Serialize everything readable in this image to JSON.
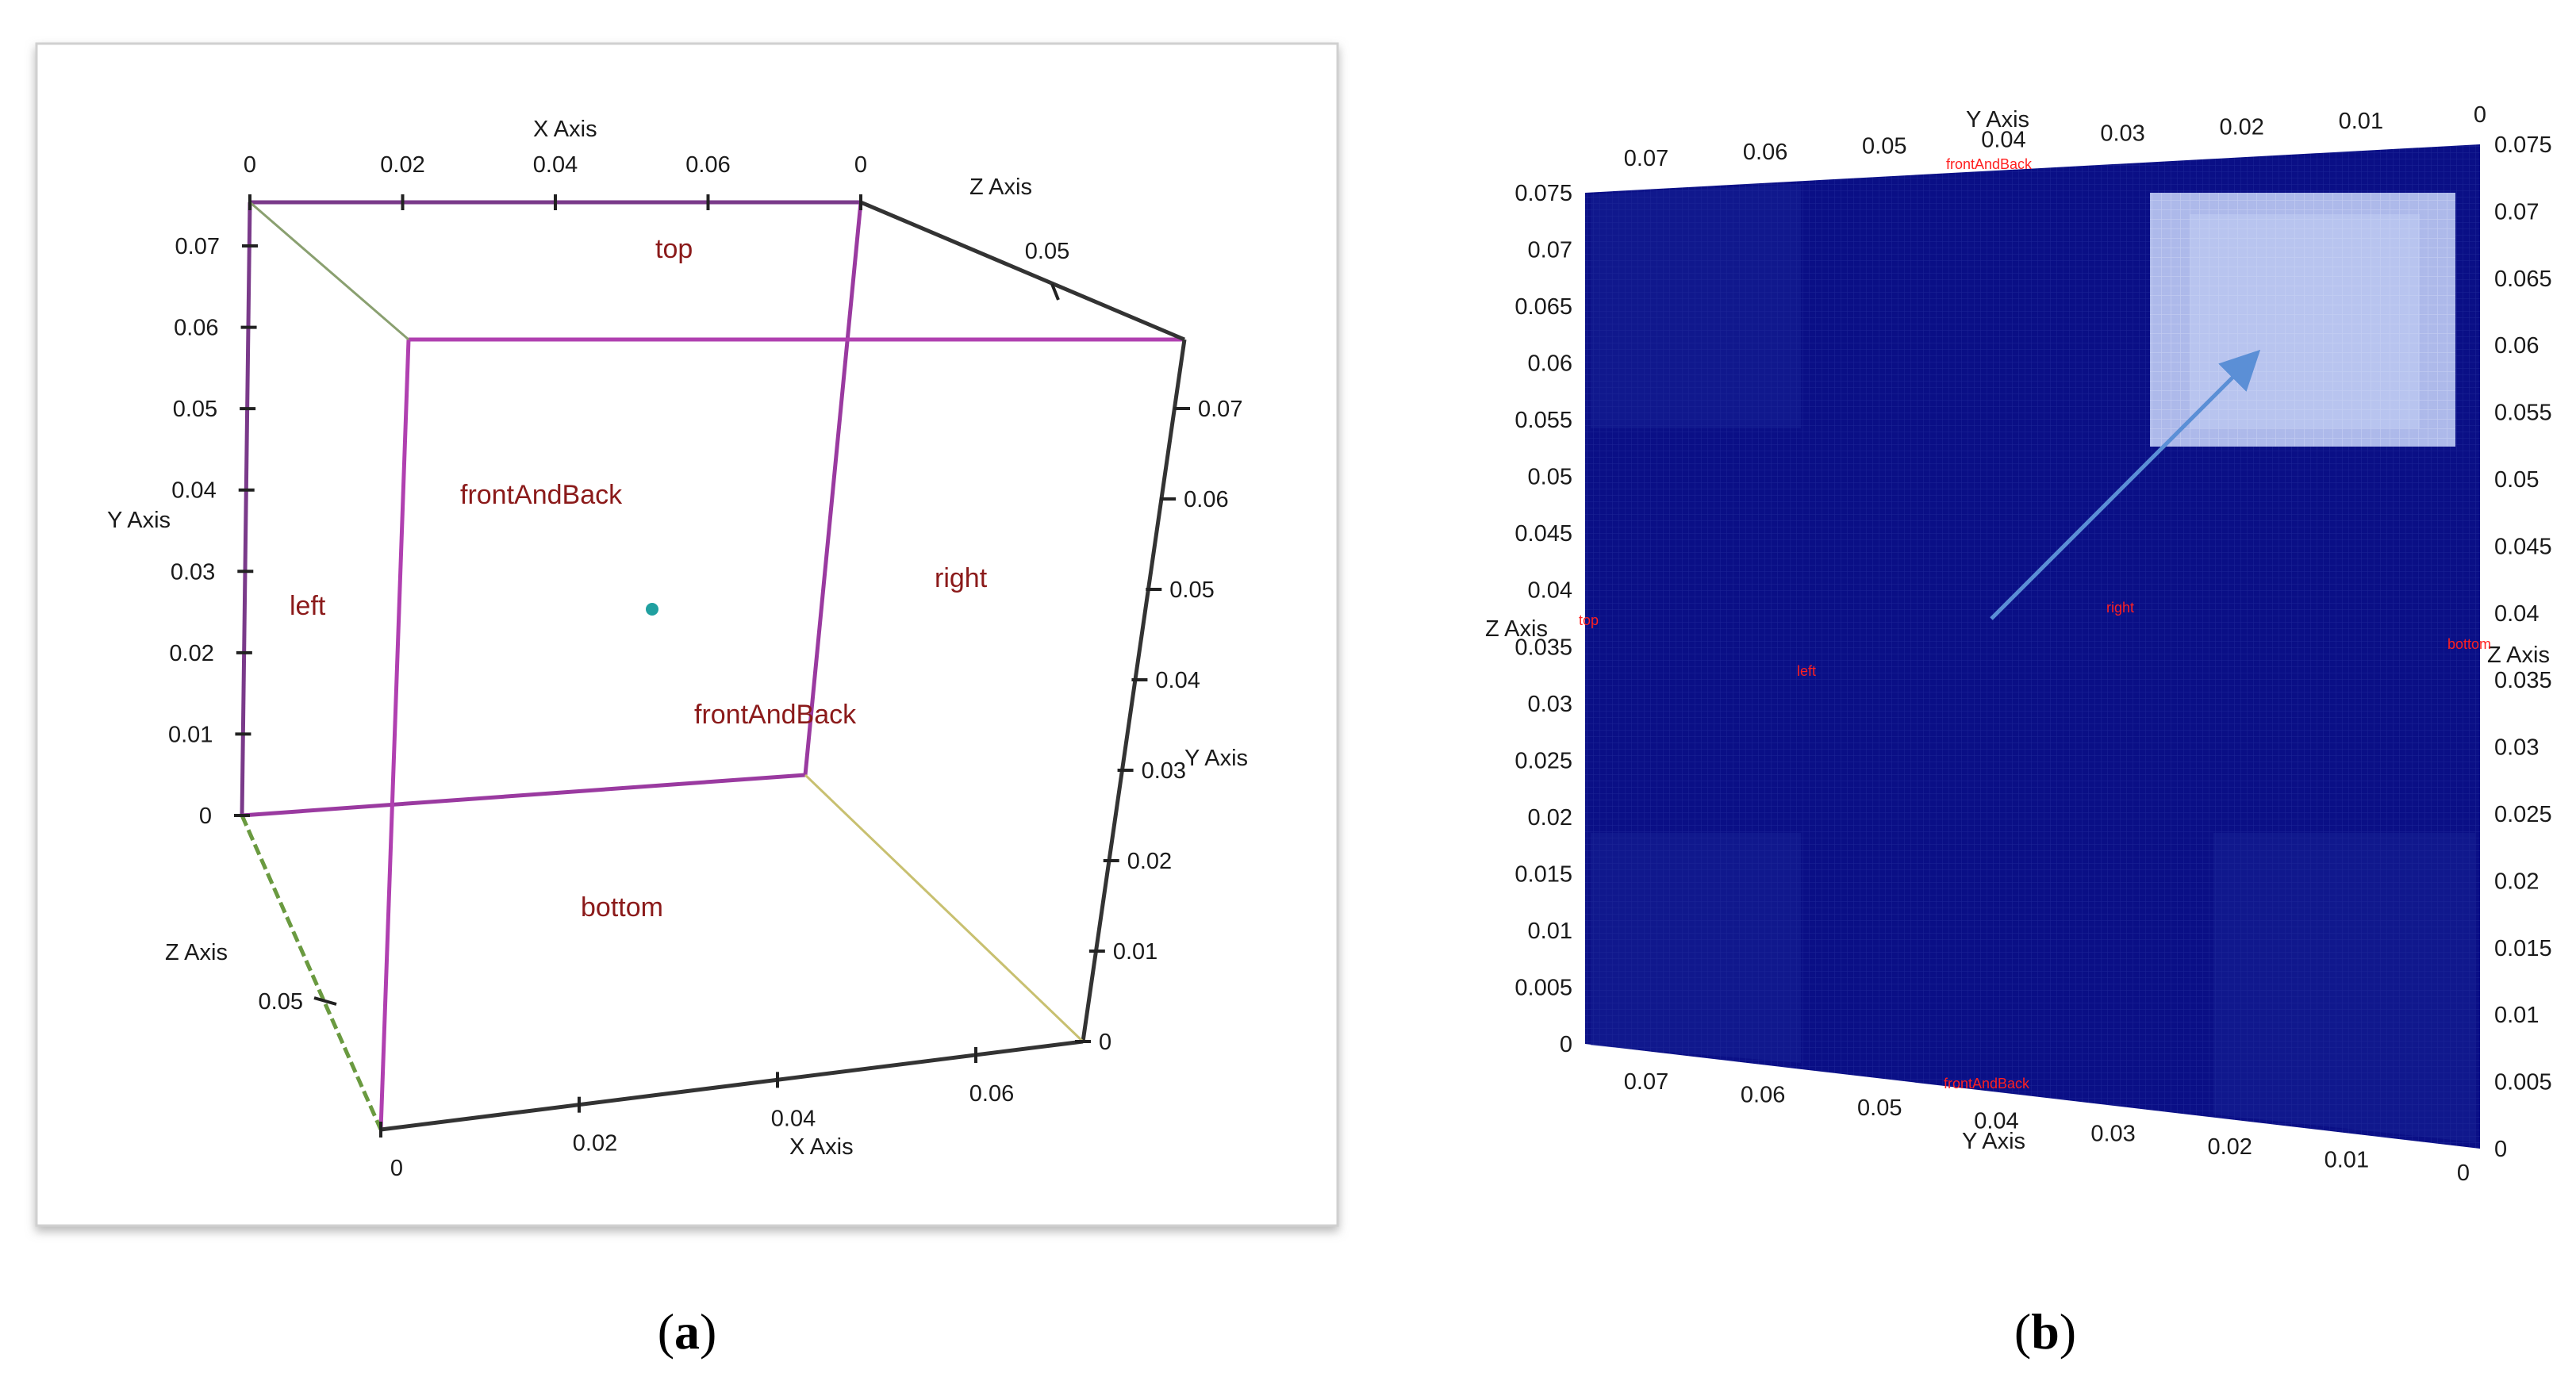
{
  "panel_a": {
    "axis_titles": {
      "x_top": "X Axis",
      "x_bottom": "X Axis",
      "y_left": "Y Axis",
      "y_right": "Y Axis",
      "z_top": "Z Axis",
      "z_left": "Z Axis"
    },
    "ticks": {
      "x_top": [
        "0",
        "0.02",
        "0.04",
        "0.06",
        "0"
      ],
      "y_left": [
        "0.07",
        "0.06",
        "0.05",
        "0.04",
        "0.03",
        "0.02",
        "0.01",
        "0"
      ],
      "z_top": [
        "0.05"
      ],
      "y_right": [
        "0.07",
        "0.06",
        "0.05",
        "0.04",
        "0.03",
        "0.02",
        "0.01",
        "0"
      ],
      "z_left": [
        "0.05"
      ],
      "x_bottom": [
        "0",
        "0.02",
        "0.04",
        "0.06"
      ]
    },
    "faces": {
      "top": "top",
      "front_upper": "frontAndBack",
      "front_lower": "frontAndBack",
      "left": "left",
      "right": "right",
      "bottom": "bottom"
    },
    "caption_open": "(",
    "caption_letter": "a",
    "caption_close": ")"
  },
  "panel_b": {
    "axis_titles": {
      "y_top": "Y Axis",
      "y_bottom": "Y Axis",
      "z_left": "Z Axis",
      "z_right": "Z Axis"
    },
    "ticks": {
      "y_top": [
        "0.07",
        "0.06",
        "0.05",
        "0.04",
        "0.03",
        "0.02",
        "0.01",
        "0"
      ],
      "z_left": [
        "0.075",
        "0.07",
        "0.065",
        "0.06",
        "0.055",
        "0.05",
        "0.045",
        "0.04",
        "0.035",
        "0.03",
        "0.025",
        "0.02",
        "0.015",
        "0.01",
        "0.005",
        "0"
      ],
      "z_right": [
        "0.075",
        "0.07",
        "0.065",
        "0.06",
        "0.055",
        "0.05",
        "0.045",
        "0.04",
        "0.035",
        "0.03",
        "0.025",
        "0.02",
        "0.015",
        "0.01",
        "0.005",
        "0"
      ],
      "y_bottom": [
        "0.07",
        "0.06",
        "0.05",
        "0.04",
        "0.03",
        "0.02",
        "0.01",
        "0"
      ]
    },
    "faces": {
      "front_top": "frontAndBack",
      "front_bottom": "frontAndBack",
      "left": "left",
      "right": "right",
      "top": "top",
      "bottom": "bottom"
    },
    "colors": {
      "mesh": "#0a0f86",
      "highlight": "#b8c4f0",
      "arrow": "#5b8fd6"
    },
    "caption_open": "(",
    "caption_letter": "b",
    "caption_close": ")"
  }
}
